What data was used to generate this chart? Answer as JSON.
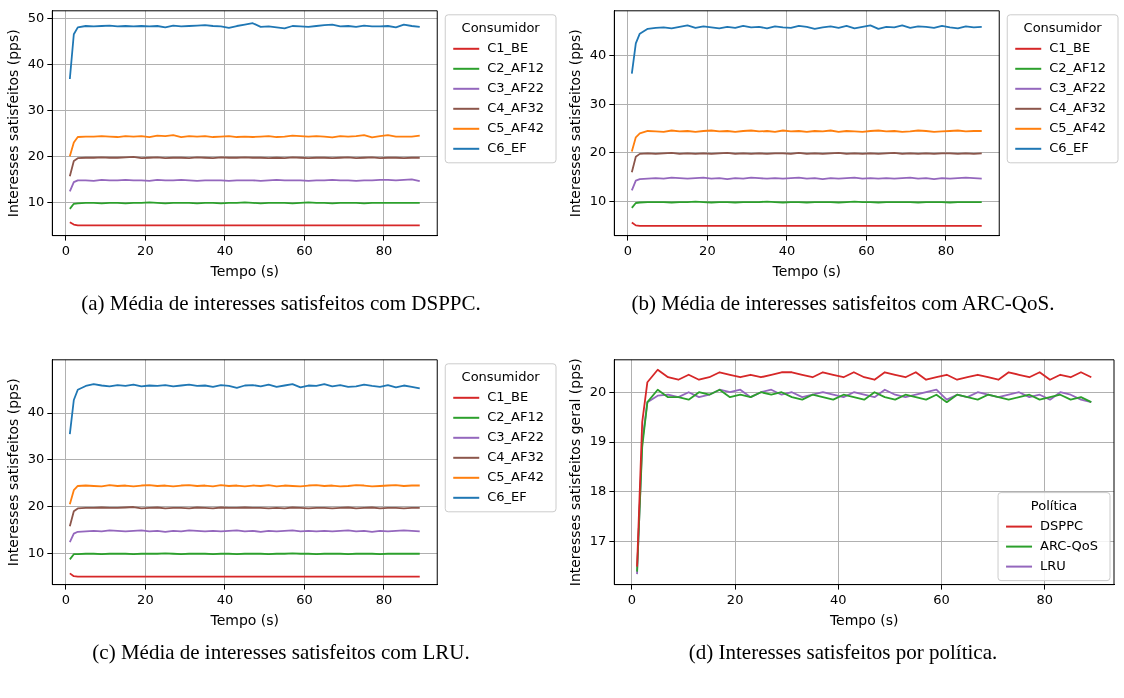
{
  "chart_data": [
    {
      "type": "line",
      "annotations": [
        "(a)  Média de interesses satisfeitos com DSPPC."
      ],
      "xlabel": "Tempo (s)",
      "ylabel": "Interesses satisfeitos (pps)",
      "legend_title": "Consumidor",
      "legend": "right",
      "grid": true,
      "marker": "none",
      "line_style": "solid",
      "xlim": [
        -3.4,
        93.4
      ],
      "xticks": [
        0,
        20,
        40,
        60,
        80
      ],
      "ylim": [
        2.8,
        51.6
      ],
      "yticks": [
        10,
        20,
        30,
        40,
        50
      ],
      "x": [
        1,
        2,
        3,
        5,
        7,
        9,
        11,
        13,
        15,
        17,
        19,
        21,
        23,
        25,
        27,
        29,
        31,
        33,
        35,
        37,
        39,
        41,
        43,
        45,
        47,
        49,
        51,
        53,
        55,
        57,
        59,
        61,
        63,
        65,
        67,
        69,
        71,
        73,
        75,
        77,
        79,
        81,
        83,
        85,
        87,
        89
      ],
      "series": [
        {
          "name": "C1_BE",
          "color": "#d62728",
          "values": [
            5.7,
            5.2,
            5.0,
            5.0,
            5.0,
            5.0,
            5.0,
            5.0,
            5.0,
            5.0,
            5.0,
            5.0,
            5.0,
            5.0,
            5.0,
            5.0,
            5.0,
            5.0,
            5.0,
            5.0,
            5.0,
            5.0,
            5.0,
            5.0,
            5.0,
            5.0,
            5.0,
            5.0,
            5.0,
            5.0,
            5.0,
            5.0,
            5.0,
            5.0,
            5.0,
            5.0,
            5.0,
            5.0,
            5.0,
            5.0,
            5.0,
            5.0,
            5.0,
            5.0,
            5.0,
            5.0
          ]
        },
        {
          "name": "C2_AF12",
          "color": "#2ca02c",
          "values": [
            8.6,
            9.7,
            9.8,
            9.9,
            9.9,
            9.8,
            9.9,
            9.9,
            9.8,
            9.9,
            9.9,
            10.0,
            9.9,
            9.8,
            9.9,
            9.9,
            9.9,
            9.8,
            9.9,
            9.9,
            9.8,
            9.9,
            9.9,
            10.0,
            9.9,
            9.8,
            9.9,
            9.9,
            9.9,
            9.8,
            9.9,
            10.0,
            9.9,
            9.9,
            9.8,
            9.9,
            9.9,
            9.9,
            9.8,
            9.9,
            9.9,
            9.9,
            9.9,
            9.9,
            9.9,
            9.9
          ]
        },
        {
          "name": "C3_AF22",
          "color": "#9467bd",
          "values": [
            12.4,
            14.4,
            14.8,
            14.8,
            14.7,
            14.9,
            14.8,
            14.8,
            14.9,
            14.8,
            14.8,
            14.7,
            14.9,
            14.8,
            14.8,
            14.9,
            14.8,
            14.7,
            14.8,
            14.8,
            14.8,
            14.7,
            14.8,
            14.8,
            14.8,
            14.7,
            14.8,
            14.9,
            14.8,
            14.8,
            14.8,
            14.7,
            14.8,
            14.8,
            14.9,
            14.8,
            14.8,
            14.7,
            14.8,
            14.8,
            14.9,
            14.9,
            14.8,
            14.9,
            15.0,
            14.6
          ]
        },
        {
          "name": "C4_AF32",
          "color": "#8c564b",
          "values": [
            15.7,
            19.0,
            19.6,
            19.7,
            19.7,
            19.8,
            19.7,
            19.7,
            19.8,
            19.9,
            19.6,
            19.7,
            19.8,
            19.6,
            19.7,
            19.7,
            19.6,
            19.8,
            19.7,
            19.6,
            19.8,
            19.7,
            19.7,
            19.8,
            19.7,
            19.7,
            19.6,
            19.7,
            19.6,
            19.8,
            19.7,
            19.6,
            19.7,
            19.7,
            19.6,
            19.7,
            19.8,
            19.6,
            19.7,
            19.8,
            19.6,
            19.7,
            19.7,
            19.6,
            19.7,
            19.7
          ]
        },
        {
          "name": "C5_AF42",
          "color": "#ff7f0e",
          "values": [
            20.0,
            23.0,
            24.2,
            24.3,
            24.3,
            24.4,
            24.3,
            24.2,
            24.4,
            24.3,
            24.4,
            24.2,
            24.5,
            24.4,
            24.6,
            24.2,
            24.4,
            24.3,
            24.4,
            24.2,
            24.3,
            24.4,
            24.2,
            24.3,
            24.2,
            24.3,
            24.4,
            24.2,
            24.3,
            24.5,
            24.4,
            24.3,
            24.4,
            24.3,
            24.1,
            24.4,
            24.3,
            24.4,
            24.6,
            24.1,
            24.4,
            24.6,
            24.3,
            24.3,
            24.3,
            24.5
          ]
        },
        {
          "name": "C6_EF",
          "color": "#1f77b4",
          "values": [
            36.8,
            46.5,
            48.0,
            48.3,
            48.2,
            48.3,
            48.4,
            48.2,
            48.3,
            48.2,
            48.3,
            48.2,
            48.3,
            48.0,
            48.4,
            48.2,
            48.3,
            48.4,
            48.5,
            48.3,
            48.2,
            47.9,
            48.3,
            48.6,
            48.9,
            48.1,
            48.2,
            48.0,
            47.8,
            48.3,
            48.2,
            48.1,
            48.3,
            48.5,
            48.6,
            48.2,
            48.3,
            48.1,
            48.4,
            48.2,
            48.2,
            48.3,
            48.0,
            48.6,
            48.3,
            48.1
          ]
        }
      ]
    },
    {
      "type": "line",
      "annotations": [
        "(b)  Média de interesses satisfeitos com ARC-QoS."
      ],
      "xlabel": "Tempo (s)",
      "ylabel": "Interesses satisfeitos (pps)",
      "legend_title": "Consumidor",
      "legend": "right",
      "grid": true,
      "marker": "none",
      "line_style": "solid",
      "xlim": [
        -3.4,
        93.4
      ],
      "xticks": [
        0,
        20,
        40,
        60,
        80
      ],
      "ylim": [
        3.0,
        49.2
      ],
      "yticks": [
        10,
        20,
        30,
        40
      ],
      "x": [
        1,
        2,
        3,
        5,
        7,
        9,
        11,
        13,
        15,
        17,
        19,
        21,
        23,
        25,
        27,
        29,
        31,
        33,
        35,
        37,
        39,
        41,
        43,
        45,
        47,
        49,
        51,
        53,
        55,
        57,
        59,
        61,
        63,
        65,
        67,
        69,
        71,
        73,
        75,
        77,
        79,
        81,
        83,
        85,
        87,
        89
      ],
      "series": [
        {
          "name": "C1_BE",
          "color": "#d62728",
          "values": [
            5.7,
            5.1,
            5.0,
            5.0,
            5.0,
            5.0,
            5.0,
            5.0,
            5.0,
            5.0,
            5.0,
            5.0,
            5.0,
            5.0,
            5.0,
            5.0,
            5.0,
            5.0,
            5.0,
            5.0,
            5.0,
            5.0,
            5.0,
            5.0,
            5.0,
            5.0,
            5.0,
            5.0,
            5.0,
            5.0,
            5.0,
            5.0,
            5.0,
            5.0,
            5.0,
            5.0,
            5.0,
            5.0,
            5.0,
            5.0,
            5.0,
            5.0,
            5.0,
            5.0,
            5.0,
            5.0
          ]
        },
        {
          "name": "C2_AF12",
          "color": "#2ca02c",
          "values": [
            8.7,
            9.7,
            9.8,
            9.9,
            9.9,
            9.9,
            9.8,
            9.9,
            9.9,
            10.0,
            9.9,
            9.8,
            9.9,
            9.9,
            9.8,
            9.9,
            9.9,
            9.9,
            10.0,
            9.9,
            9.8,
            9.9,
            9.9,
            9.8,
            9.9,
            9.9,
            9.9,
            9.8,
            9.9,
            10.0,
            9.9,
            9.9,
            9.8,
            9.9,
            9.9,
            9.9,
            9.9,
            9.8,
            9.9,
            9.9,
            9.9,
            9.8,
            9.9,
            9.9,
            9.9,
            9.9
          ]
        },
        {
          "name": "C3_AF22",
          "color": "#9467bd",
          "values": [
            12.3,
            14.3,
            14.6,
            14.7,
            14.8,
            14.7,
            14.9,
            14.8,
            14.7,
            14.8,
            14.9,
            14.7,
            14.8,
            14.6,
            14.8,
            14.7,
            14.9,
            14.8,
            14.7,
            14.8,
            14.7,
            14.8,
            14.9,
            14.7,
            14.8,
            14.6,
            14.8,
            14.7,
            14.8,
            14.9,
            14.7,
            14.8,
            14.7,
            14.8,
            14.7,
            14.8,
            14.9,
            14.7,
            14.8,
            14.6,
            14.8,
            14.7,
            14.8,
            14.9,
            14.8,
            14.7
          ]
        },
        {
          "name": "C4_AF32",
          "color": "#8c564b",
          "values": [
            16.0,
            19.2,
            19.8,
            19.9,
            19.8,
            19.9,
            20.0,
            19.8,
            19.9,
            19.8,
            19.9,
            19.8,
            19.9,
            20.0,
            19.8,
            19.9,
            19.8,
            19.9,
            19.8,
            19.9,
            19.9,
            19.8,
            20.0,
            19.8,
            19.9,
            19.8,
            19.9,
            20.0,
            19.8,
            19.9,
            19.8,
            19.9,
            19.8,
            19.9,
            20.0,
            19.8,
            19.9,
            19.8,
            19.9,
            19.8,
            19.9,
            19.9,
            19.8,
            19.9,
            19.8,
            19.9
          ]
        },
        {
          "name": "C5_AF42",
          "color": "#ff7f0e",
          "values": [
            20.3,
            23.2,
            24.0,
            24.5,
            24.4,
            24.3,
            24.6,
            24.4,
            24.5,
            24.3,
            24.5,
            24.6,
            24.4,
            24.5,
            24.3,
            24.5,
            24.6,
            24.4,
            24.5,
            24.3,
            24.6,
            24.4,
            24.5,
            24.3,
            24.5,
            24.4,
            24.6,
            24.3,
            24.5,
            24.4,
            24.3,
            24.5,
            24.6,
            24.4,
            24.5,
            24.3,
            24.4,
            24.6,
            24.5,
            24.3,
            24.4,
            24.5,
            24.6,
            24.4,
            24.5,
            24.5
          ]
        },
        {
          "name": "C6_EF",
          "color": "#1f77b4",
          "values": [
            36.3,
            42.5,
            44.5,
            45.5,
            45.7,
            45.8,
            45.6,
            45.9,
            46.2,
            45.7,
            46.0,
            45.8,
            45.6,
            45.9,
            45.7,
            46.1,
            45.8,
            45.9,
            45.6,
            46.0,
            45.8,
            45.7,
            46.1,
            45.9,
            45.5,
            45.8,
            46.0,
            45.7,
            46.1,
            45.6,
            45.9,
            46.2,
            45.5,
            45.9,
            45.8,
            46.2,
            45.7,
            46.0,
            45.9,
            45.7,
            46.1,
            45.8,
            45.6,
            46.0,
            45.8,
            45.9
          ]
        }
      ]
    },
    {
      "type": "line",
      "annotations": [
        "(c)  Média de interesses satisfeitos com LRU."
      ],
      "xlabel": "Tempo (s)",
      "ylabel": "Interesses satisfeitos (pps)",
      "legend_title": "Consumidor",
      "legend": "right",
      "grid": true,
      "marker": "none",
      "line_style": "solid",
      "xlim": [
        -3.4,
        93.4
      ],
      "xticks": [
        0,
        20,
        40,
        60,
        80
      ],
      "ylim": [
        3.3,
        51.4
      ],
      "yticks": [
        10,
        20,
        30,
        40
      ],
      "x": [
        1,
        2,
        3,
        5,
        7,
        9,
        11,
        13,
        15,
        17,
        19,
        21,
        23,
        25,
        27,
        29,
        31,
        33,
        35,
        37,
        39,
        41,
        43,
        45,
        47,
        49,
        51,
        53,
        55,
        57,
        59,
        61,
        63,
        65,
        67,
        69,
        71,
        73,
        75,
        77,
        79,
        81,
        83,
        85,
        87,
        89
      ],
      "series": [
        {
          "name": "C1_BE",
          "color": "#d62728",
          "values": [
            5.7,
            5.1,
            5.0,
            5.0,
            5.0,
            5.0,
            5.0,
            5.0,
            5.0,
            5.0,
            5.0,
            5.0,
            5.0,
            5.0,
            5.0,
            5.0,
            5.0,
            5.0,
            5.0,
            5.0,
            5.0,
            5.0,
            5.0,
            5.0,
            5.0,
            5.0,
            5.0,
            5.0,
            5.0,
            5.0,
            5.0,
            5.0,
            5.0,
            5.0,
            5.0,
            5.0,
            5.0,
            5.0,
            5.0,
            5.0,
            5.0,
            5.0,
            5.0,
            5.0,
            5.0,
            5.0
          ]
        },
        {
          "name": "C2_AF12",
          "color": "#2ca02c",
          "values": [
            8.7,
            9.8,
            9.8,
            9.9,
            9.9,
            9.8,
            9.9,
            9.9,
            9.9,
            9.8,
            9.9,
            9.9,
            9.9,
            10.0,
            9.9,
            9.8,
            9.9,
            9.9,
            9.9,
            9.8,
            9.9,
            9.9,
            9.8,
            9.9,
            9.9,
            9.9,
            9.8,
            9.9,
            9.9,
            10.0,
            9.9,
            9.9,
            9.8,
            9.9,
            9.9,
            9.9,
            9.8,
            9.9,
            9.9,
            9.9,
            9.8,
            9.9,
            9.9,
            9.9,
            9.9,
            9.9
          ]
        },
        {
          "name": "C3_AF22",
          "color": "#9467bd",
          "values": [
            12.4,
            14.2,
            14.6,
            14.7,
            14.8,
            14.7,
            14.9,
            14.8,
            14.7,
            14.8,
            14.9,
            14.7,
            14.8,
            14.6,
            14.8,
            14.7,
            14.9,
            14.8,
            14.7,
            14.8,
            14.7,
            14.8,
            14.9,
            14.7,
            14.8,
            14.6,
            14.8,
            14.7,
            14.8,
            14.9,
            14.7,
            14.8,
            14.7,
            14.8,
            14.7,
            14.8,
            14.9,
            14.7,
            14.8,
            14.6,
            14.8,
            14.7,
            14.8,
            14.9,
            14.8,
            14.7
          ]
        },
        {
          "name": "C4_AF32",
          "color": "#8c564b",
          "values": [
            15.8,
            19.0,
            19.6,
            19.7,
            19.7,
            19.8,
            19.7,
            19.7,
            19.8,
            19.9,
            19.6,
            19.7,
            19.8,
            19.6,
            19.7,
            19.7,
            19.6,
            19.8,
            19.7,
            19.6,
            19.8,
            19.7,
            19.7,
            19.8,
            19.7,
            19.7,
            19.6,
            19.7,
            19.6,
            19.8,
            19.7,
            19.6,
            19.7,
            19.7,
            19.6,
            19.7,
            19.8,
            19.6,
            19.7,
            19.8,
            19.6,
            19.7,
            19.7,
            19.6,
            19.7,
            19.7
          ]
        },
        {
          "name": "C5_AF42",
          "color": "#ff7f0e",
          "values": [
            20.5,
            23.5,
            24.4,
            24.5,
            24.4,
            24.3,
            24.6,
            24.4,
            24.5,
            24.3,
            24.5,
            24.6,
            24.4,
            24.5,
            24.3,
            24.5,
            24.6,
            24.4,
            24.5,
            24.3,
            24.6,
            24.4,
            24.5,
            24.3,
            24.5,
            24.4,
            24.6,
            24.3,
            24.5,
            24.4,
            24.3,
            24.5,
            24.6,
            24.4,
            24.5,
            24.3,
            24.4,
            24.6,
            24.5,
            24.3,
            24.4,
            24.5,
            24.6,
            24.4,
            24.5,
            24.5
          ]
        },
        {
          "name": "C6_EF",
          "color": "#1f77b4",
          "values": [
            35.5,
            42.8,
            45.0,
            45.8,
            46.2,
            45.9,
            45.7,
            46.0,
            45.8,
            46.1,
            45.7,
            45.9,
            45.8,
            46.0,
            45.7,
            45.9,
            46.1,
            45.8,
            45.9,
            45.6,
            46.0,
            45.8,
            45.4,
            45.9,
            46.0,
            45.7,
            46.1,
            45.6,
            45.9,
            46.2,
            45.5,
            45.9,
            45.8,
            46.2,
            45.7,
            46.0,
            45.6,
            45.7,
            46.1,
            45.8,
            45.6,
            46.0,
            45.5,
            45.9,
            45.6,
            45.3
          ]
        }
      ]
    },
    {
      "type": "line",
      "annotations": [
        "(d)  Interesses satisfeitos por política."
      ],
      "xlabel": "Tempo (s)",
      "ylabel": "Interesses satisfeitos geral (pps)",
      "legend_title": "Política",
      "legend": "bottom right",
      "grid": true,
      "marker": "none",
      "line_style": "solid",
      "xlim": [
        -3.4,
        93.4
      ],
      "xticks": [
        0,
        20,
        40,
        60,
        80
      ],
      "ylim": [
        16.14,
        20.65
      ],
      "yticks": [
        17,
        18,
        19,
        20
      ],
      "x": [
        1,
        2,
        3,
        5,
        7,
        9,
        11,
        13,
        15,
        17,
        19,
        21,
        23,
        25,
        27,
        29,
        31,
        33,
        35,
        37,
        39,
        41,
        43,
        45,
        47,
        49,
        51,
        53,
        55,
        57,
        59,
        61,
        63,
        65,
        67,
        69,
        71,
        73,
        75,
        77,
        79,
        81,
        83,
        85,
        87,
        89
      ],
      "series": [
        {
          "name": "DSPPC",
          "color": "#d62728",
          "values": [
            16.5,
            19.4,
            20.2,
            20.45,
            20.3,
            20.25,
            20.35,
            20.25,
            20.3,
            20.4,
            20.35,
            20.3,
            20.35,
            20.3,
            20.35,
            20.4,
            20.4,
            20.35,
            20.3,
            20.4,
            20.35,
            20.3,
            20.4,
            20.3,
            20.25,
            20.4,
            20.35,
            20.3,
            20.4,
            20.25,
            20.3,
            20.35,
            20.25,
            20.3,
            20.35,
            20.3,
            20.25,
            20.4,
            20.35,
            20.3,
            20.4,
            20.25,
            20.35,
            20.3,
            20.4,
            20.3
          ]
        },
        {
          "name": "ARC-QoS",
          "color": "#2ca02c",
          "values": [
            16.4,
            18.9,
            19.8,
            20.05,
            19.9,
            19.9,
            19.85,
            20.0,
            19.95,
            20.05,
            19.9,
            19.95,
            19.9,
            20.0,
            19.95,
            20.0,
            19.9,
            19.85,
            19.95,
            19.9,
            19.85,
            19.95,
            19.9,
            19.85,
            20.0,
            19.9,
            19.85,
            19.95,
            19.9,
            19.85,
            19.95,
            19.8,
            19.95,
            19.9,
            19.85,
            19.95,
            19.9,
            19.85,
            19.9,
            19.95,
            19.85,
            19.9,
            19.95,
            19.85,
            19.9,
            19.8
          ]
        },
        {
          "name": "LRU",
          "color": "#9467bd",
          "values": [
            16.35,
            19.0,
            19.8,
            19.93,
            19.95,
            19.9,
            20.0,
            19.9,
            19.95,
            20.05,
            20.0,
            20.05,
            19.9,
            20.0,
            20.05,
            19.95,
            20.0,
            19.9,
            19.95,
            20.0,
            19.95,
            19.9,
            20.0,
            19.95,
            19.9,
            20.05,
            19.95,
            19.9,
            19.95,
            20.0,
            20.05,
            19.85,
            19.95,
            19.9,
            20.0,
            19.95,
            19.9,
            19.95,
            20.0,
            19.9,
            19.95,
            19.85,
            20.0,
            19.95,
            19.85,
            19.8
          ]
        }
      ]
    }
  ]
}
